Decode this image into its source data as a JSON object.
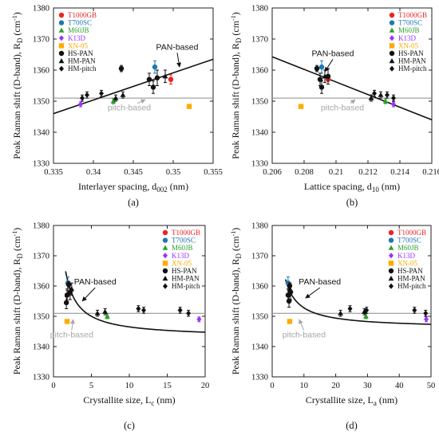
{
  "chart_data": [
    {
      "type": "scatter",
      "panel_label": "(a)",
      "xlabel": "Interlayer spacing, d",
      "xlabel_sub": "002",
      "xlabel_unit": " (nm)",
      "ylabel": "Peak Raman shift (D-band), R",
      "ylabel_sub": "D",
      "ylabel_unit": " (cm",
      "ylabel_sup": "-1",
      "ylabel_end": ")",
      "xlim": [
        0.335,
        0.355
      ],
      "ylim": [
        1330,
        1380
      ],
      "xticks": [
        "0.335",
        "0.34",
        "0.345",
        "0.35",
        "0.355"
      ],
      "yticks": [
        "1330",
        "1340",
        "1350",
        "1360",
        "1370",
        "1380"
      ],
      "legend_position": "top-left",
      "series": [
        {
          "name": "T1000GB",
          "color": "#ee2222",
          "marker": "circle",
          "points": [
            {
              "x": 0.3497,
              "y": 1357,
              "e": 1.5
            }
          ]
        },
        {
          "name": "T700SC",
          "color": "#1f77b4",
          "marker": "circle",
          "points": [
            {
              "x": 0.3477,
              "y": 1361,
              "e": 2
            }
          ]
        },
        {
          "name": "M60JB",
          "color": "#2ca02c",
          "marker": "triangle",
          "points": [
            {
              "x": 0.3425,
              "y": 1350,
              "e": 0.8
            }
          ]
        },
        {
          "name": "K13D",
          "color": "#9b30ff",
          "marker": "diamond",
          "points": [
            {
              "x": 0.3384,
              "y": 1349,
              "e": 0.8
            }
          ]
        },
        {
          "name": "XN-05",
          "color": "#ffaa00",
          "marker": "square",
          "points": [
            {
              "x": 0.352,
              "y": 1348.3,
              "e": 0
            }
          ]
        },
        {
          "name": "HS-PAN",
          "color": "#111111",
          "marker": "circle",
          "points": [
            {
              "x": 0.3435,
              "y": 1360.5,
              "e": 1
            },
            {
              "x": 0.347,
              "y": 1357,
              "e": 2
            },
            {
              "x": 0.348,
              "y": 1357.5,
              "e": 2.5
            },
            {
              "x": 0.3475,
              "y": 1354.5,
              "e": 2
            }
          ]
        },
        {
          "name": "HM-PAN",
          "color": "#111111",
          "marker": "triangle",
          "points": [
            {
              "x": 0.3428,
              "y": 1351,
              "e": 1
            },
            {
              "x": 0.3437,
              "y": 1352,
              "e": 1
            },
            {
              "x": 0.349,
              "y": 1358,
              "e": 2
            }
          ]
        },
        {
          "name": "HM-pitch",
          "color": "#111111",
          "marker": "diamond",
          "points": [
            {
              "x": 0.3386,
              "y": 1351,
              "e": 1
            },
            {
              "x": 0.3392,
              "y": 1352,
              "e": 1
            },
            {
              "x": 0.341,
              "y": 1352.5,
              "e": 1
            }
          ]
        }
      ],
      "fit_line": {
        "label": "PAN-based",
        "x": [
          0.335,
          0.355
        ],
        "y": [
          1346,
          1363.5
        ]
      },
      "hline": {
        "label": "pitch-based",
        "y": 1351
      },
      "annotations": {
        "pan": {
          "x": 0.3505,
          "y": 1366.6,
          "ax": 0.3508,
          "ay": 1361
        },
        "pitch": {
          "x": 0.3445,
          "y": 1347,
          "ax": 0.3465,
          "ay": 1351
        }
      }
    },
    {
      "type": "scatter",
      "panel_label": "(b)",
      "xlabel": "Lattice spacing, d",
      "xlabel_sub": "10",
      "xlabel_unit": " (nm)",
      "ylabel": "Peak Raman shift (D-band), R",
      "ylabel_sub": "D",
      "ylabel_unit": " (cm",
      "ylabel_sup": "-1",
      "ylabel_end": ")",
      "xlim": [
        0.206,
        0.216
      ],
      "ylim": [
        1330,
        1380
      ],
      "xticks": [
        "0.206",
        "0.208",
        "0.21",
        "0.212",
        "0.214",
        "0.216"
      ],
      "yticks": [
        "1330",
        "1340",
        "1350",
        "1360",
        "1370",
        "1380"
      ],
      "legend_position": "top-right",
      "series": [
        {
          "name": "T1000GB",
          "color": "#ee2222",
          "marker": "circle",
          "points": [
            {
              "x": 0.2095,
              "y": 1357,
              "e": 1.5
            }
          ]
        },
        {
          "name": "T700SC",
          "color": "#1f77b4",
          "marker": "circle",
          "points": [
            {
              "x": 0.2091,
              "y": 1361,
              "e": 2
            }
          ]
        },
        {
          "name": "M60JB",
          "color": "#2ca02c",
          "marker": "triangle",
          "points": [
            {
              "x": 0.2131,
              "y": 1350,
              "e": 0.8
            }
          ]
        },
        {
          "name": "K13D",
          "color": "#9b30ff",
          "marker": "diamond",
          "points": [
            {
              "x": 0.2136,
              "y": 1349,
              "e": 0.8
            }
          ]
        },
        {
          "name": "XN-05",
          "color": "#ffaa00",
          "marker": "square",
          "points": [
            {
              "x": 0.2078,
              "y": 1348.3,
              "e": 0
            }
          ]
        },
        {
          "name": "HS-PAN",
          "color": "#111111",
          "marker": "circle",
          "points": [
            {
              "x": 0.2088,
              "y": 1360.5,
              "e": 1
            },
            {
              "x": 0.209,
              "y": 1357,
              "e": 2
            },
            {
              "x": 0.2095,
              "y": 1358,
              "e": 2.5
            },
            {
              "x": 0.2091,
              "y": 1354.5,
              "e": 2
            }
          ]
        },
        {
          "name": "HM-PAN",
          "color": "#111111",
          "marker": "triangle",
          "points": [
            {
              "x": 0.2122,
              "y": 1351,
              "e": 1
            },
            {
              "x": 0.2128,
              "y": 1352,
              "e": 1
            },
            {
              "x": 0.2093,
              "y": 1358,
              "e": 2
            }
          ]
        },
        {
          "name": "HM-pitch",
          "color": "#111111",
          "marker": "diamond",
          "points": [
            {
              "x": 0.2132,
              "y": 1352,
              "e": 1
            },
            {
              "x": 0.2136,
              "y": 1351,
              "e": 1
            },
            {
              "x": 0.2124,
              "y": 1352.5,
              "e": 1
            }
          ]
        }
      ],
      "fit_line": {
        "label": "PAN-based",
        "x": [
          0.206,
          0.216
        ],
        "y": [
          1364.3,
          1344
        ]
      },
      "hline": {
        "label": "pitch-based",
        "y": 1351
      },
      "annotations": {
        "pan": {
          "x": 0.2098,
          "y": 1364.5,
          "ax": 0.2093,
          "ay": 1359.5
        },
        "pitch": {
          "x": 0.2104,
          "y": 1347,
          "ax": 0.2112,
          "ay": 1351
        }
      }
    },
    {
      "type": "scatter",
      "panel_label": "(c)",
      "xlabel": "Crystallite size, L",
      "xlabel_sub": "c",
      "xlabel_unit": " (nm)",
      "ylabel": "Peak Raman shift (D-band), R",
      "ylabel_sub": "D",
      "ylabel_unit": " (cm",
      "ylabel_sup": "-1",
      "ylabel_end": ")",
      "xlim": [
        0,
        20
      ],
      "ylim": [
        1330,
        1380
      ],
      "xticks": [
        "0",
        "5",
        "10",
        "15",
        "20"
      ],
      "yticks": [
        "1330",
        "1340",
        "1350",
        "1360",
        "1370",
        "1380"
      ],
      "legend_position": "top-right",
      "series": [
        {
          "name": "T1000GB",
          "color": "#ee2222",
          "marker": "circle",
          "points": [
            {
              "x": 1.8,
              "y": 1357,
              "e": 1.5
            }
          ]
        },
        {
          "name": "T700SC",
          "color": "#1f77b4",
          "marker": "circle",
          "points": [
            {
              "x": 1.9,
              "y": 1361,
              "e": 2
            }
          ]
        },
        {
          "name": "M60JB",
          "color": "#2ca02c",
          "marker": "triangle",
          "points": [
            {
              "x": 7.1,
              "y": 1350,
              "e": 0.8
            }
          ]
        },
        {
          "name": "K13D",
          "color": "#9b30ff",
          "marker": "diamond",
          "points": [
            {
              "x": 19.2,
              "y": 1349,
              "e": 0.8
            }
          ]
        },
        {
          "name": "XN-05",
          "color": "#ffaa00",
          "marker": "square",
          "points": [
            {
              "x": 1.8,
              "y": 1348.3,
              "e": 0
            }
          ]
        },
        {
          "name": "HS-PAN",
          "color": "#111111",
          "marker": "circle",
          "points": [
            {
              "x": 2.0,
              "y": 1360.5,
              "e": 1
            },
            {
              "x": 1.8,
              "y": 1357,
              "e": 2
            },
            {
              "x": 2.2,
              "y": 1358,
              "e": 2.5
            },
            {
              "x": 1.7,
              "y": 1354.5,
              "e": 2
            }
          ]
        },
        {
          "name": "HM-PAN",
          "color": "#111111",
          "marker": "triangle",
          "points": [
            {
              "x": 5.8,
              "y": 1351,
              "e": 1
            },
            {
              "x": 6.8,
              "y": 1351.5,
              "e": 1
            },
            {
              "x": 2.4,
              "y": 1359,
              "e": 2
            }
          ]
        },
        {
          "name": "HM-pitch",
          "color": "#111111",
          "marker": "diamond",
          "points": [
            {
              "x": 11.2,
              "y": 1352.5,
              "e": 1
            },
            {
              "x": 11.9,
              "y": 1352,
              "e": 1
            },
            {
              "x": 16.7,
              "y": 1352,
              "e": 1
            },
            {
              "x": 17.8,
              "y": 1351,
              "e": 1
            }
          ]
        }
      ],
      "fit_curve": {
        "label": "PAN-based",
        "form": "y=a+b/x",
        "a": 1343,
        "b": 35,
        "x_from": 1.6,
        "x_to": 20
      },
      "hline": {
        "label": "pitch-based",
        "y": 1351
      },
      "annotations": {
        "pan": {
          "x": 5.5,
          "y": 1360.5,
          "ax": 3.8,
          "ay": 1355
        },
        "pitch": {
          "x": 2.4,
          "y": 1343,
          "ax": 2.6,
          "ay": 1349.5
        }
      }
    },
    {
      "type": "scatter",
      "panel_label": "(d)",
      "xlabel": "Crystallite size, L",
      "xlabel_sub": "a",
      "xlabel_unit": " (nm)",
      "ylabel": "Peak Raman shift (D-band), R",
      "ylabel_sub": "D",
      "ylabel_unit": " (cm",
      "ylabel_sup": "-1",
      "ylabel_end": ")",
      "xlim": [
        0,
        50
      ],
      "ylim": [
        1330,
        1380
      ],
      "xticks": [
        "0",
        "10",
        "20",
        "30",
        "40",
        "50"
      ],
      "yticks": [
        "1330",
        "1340",
        "1350",
        "1360",
        "1370",
        "1380"
      ],
      "legend_position": "top-right",
      "series": [
        {
          "name": "T1000GB",
          "color": "#ee2222",
          "marker": "circle",
          "points": [
            {
              "x": 5.2,
              "y": 1357,
              "e": 1.5
            }
          ]
        },
        {
          "name": "T700SC",
          "color": "#1f77b4",
          "marker": "circle",
          "points": [
            {
              "x": 5.0,
              "y": 1361,
              "e": 2
            }
          ]
        },
        {
          "name": "M60JB",
          "color": "#2ca02c",
          "marker": "triangle",
          "points": [
            {
              "x": 29.5,
              "y": 1350,
              "e": 0.8
            }
          ]
        },
        {
          "name": "K13D",
          "color": "#9b30ff",
          "marker": "diamond",
          "points": [
            {
              "x": 48.5,
              "y": 1349,
              "e": 0.8
            }
          ]
        },
        {
          "name": "XN-05",
          "color": "#ffaa00",
          "marker": "square",
          "points": [
            {
              "x": 5.5,
              "y": 1348.3,
              "e": 0
            }
          ]
        },
        {
          "name": "HS-PAN",
          "color": "#111111",
          "marker": "circle",
          "points": [
            {
              "x": 5.5,
              "y": 1360,
              "e": 1
            },
            {
              "x": 5.0,
              "y": 1357,
              "e": 2
            },
            {
              "x": 5.8,
              "y": 1358,
              "e": 2.5
            },
            {
              "x": 5.3,
              "y": 1355,
              "e": 2
            }
          ]
        },
        {
          "name": "HM-PAN",
          "color": "#111111",
          "marker": "triangle",
          "points": [
            {
              "x": 21.5,
              "y": 1351,
              "e": 1
            },
            {
              "x": 29.0,
              "y": 1351.5,
              "e": 1
            },
            {
              "x": 5.6,
              "y": 1359,
              "e": 2
            }
          ]
        },
        {
          "name": "HM-pitch",
          "color": "#111111",
          "marker": "diamond",
          "points": [
            {
              "x": 24.5,
              "y": 1352.5,
              "e": 1
            },
            {
              "x": 29.7,
              "y": 1352,
              "e": 1
            },
            {
              "x": 44.8,
              "y": 1352,
              "e": 1
            },
            {
              "x": 48.3,
              "y": 1351,
              "e": 1
            }
          ]
        }
      ],
      "fit_curve": {
        "label": "PAN-based",
        "form": "y=a+b/x",
        "a": 1346,
        "b": 68,
        "x_from": 4.2,
        "x_to": 50
      },
      "hline": {
        "label": "pitch-based",
        "y": 1351
      },
      "annotations": {
        "pan": {
          "x": 15,
          "y": 1360.5,
          "ax": 10.5,
          "ay": 1356
        },
        "pitch": {
          "x": 10,
          "y": 1343,
          "ax": 8.5,
          "ay": 1349.5
        }
      }
    }
  ]
}
